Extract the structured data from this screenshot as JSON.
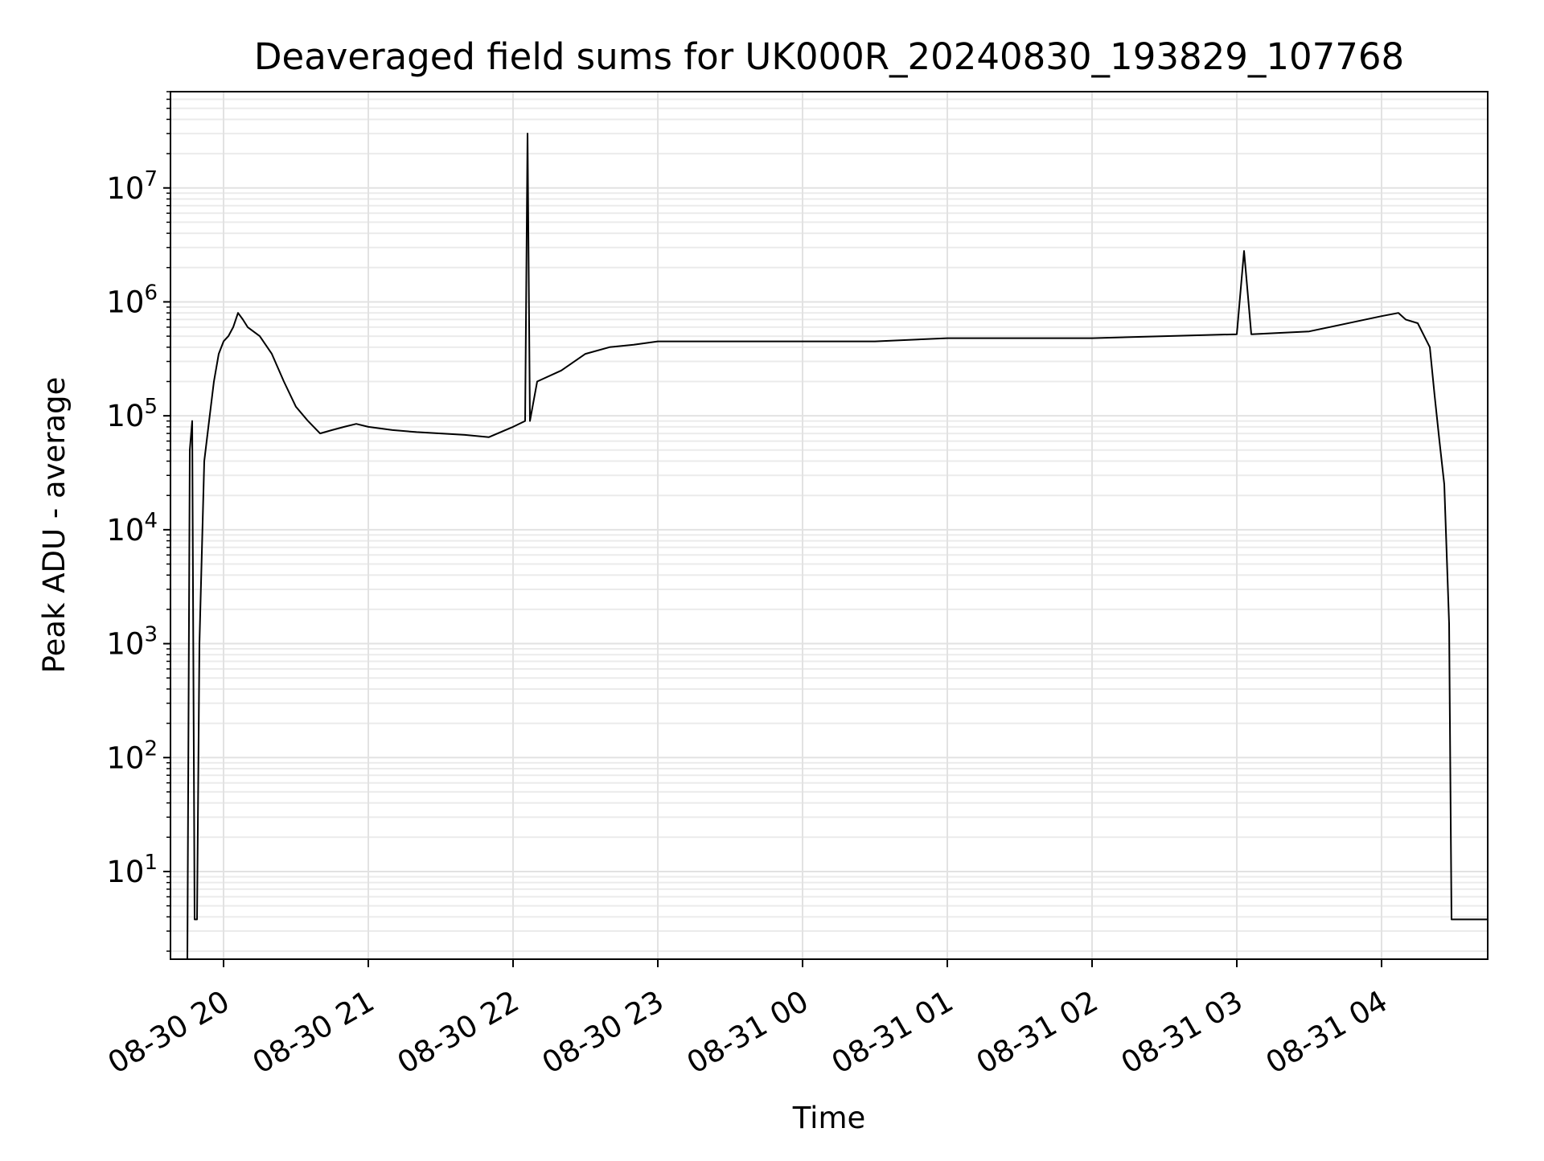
{
  "chart_data": {
    "type": "line",
    "title": "Deaveraged field sums for UK000R_20240830_193829_107768",
    "xlabel": "Time",
    "ylabel": "Peak ADU - average",
    "yscale": "log",
    "ylim": [
      1.7,
      70000000
    ],
    "xlim": [
      "08-30 19:38",
      "08-31 04:44"
    ],
    "grid": true,
    "x_ticks": [
      {
        "time": "08-30 20:00",
        "label": "08-30 20"
      },
      {
        "time": "08-30 21:00",
        "label": "08-30 21"
      },
      {
        "time": "08-30 22:00",
        "label": "08-30 22"
      },
      {
        "time": "08-30 23:00",
        "label": "08-30 23"
      },
      {
        "time": "08-31 00:00",
        "label": "08-31 00"
      },
      {
        "time": "08-31 01:00",
        "label": "08-31 01"
      },
      {
        "time": "08-31 02:00",
        "label": "08-31 02"
      },
      {
        "time": "08-31 03:00",
        "label": "08-31 03"
      },
      {
        "time": "08-31 04:00",
        "label": "08-31 04"
      }
    ],
    "y_ticks": [
      {
        "value": 10,
        "base": "10",
        "exp": "1"
      },
      {
        "value": 100,
        "base": "10",
        "exp": "2"
      },
      {
        "value": 1000,
        "base": "10",
        "exp": "3"
      },
      {
        "value": 10000,
        "base": "10",
        "exp": "4"
      },
      {
        "value": 100000,
        "base": "10",
        "exp": "5"
      },
      {
        "value": 1000000,
        "base": "10",
        "exp": "6"
      },
      {
        "value": 10000000,
        "base": "10",
        "exp": "7"
      }
    ],
    "series": [
      {
        "color": "#000000",
        "x": [
          "08-30 19:45",
          "08-30 19:46",
          "08-30 19:47",
          "08-30 19:48",
          "08-30 19:49",
          "08-30 19:50",
          "08-30 19:52",
          "08-30 19:54",
          "08-30 19:56",
          "08-30 19:58",
          "08-30 20:00",
          "08-30 20:02",
          "08-30 20:04",
          "08-30 20:06",
          "08-30 20:08",
          "08-30 20:10",
          "08-30 20:15",
          "08-30 20:20",
          "08-30 20:25",
          "08-30 20:30",
          "08-30 20:35",
          "08-30 20:40",
          "08-30 20:45",
          "08-30 20:50",
          "08-30 20:55",
          "08-30 21:00",
          "08-30 21:10",
          "08-30 21:20",
          "08-30 21:30",
          "08-30 21:40",
          "08-30 21:50",
          "08-30 22:00",
          "08-30 22:05",
          "08-30 22:06",
          "08-30 22:07",
          "08-30 22:10",
          "08-30 22:20",
          "08-30 22:30",
          "08-30 22:40",
          "08-30 22:50",
          "08-30 23:00",
          "08-30 23:30",
          "08-31 00:00",
          "08-31 00:30",
          "08-31 01:00",
          "08-31 01:30",
          "08-31 02:00",
          "08-31 02:30",
          "08-31 03:00",
          "08-31 03:03",
          "08-31 03:06",
          "08-31 03:30",
          "08-31 04:00",
          "08-31 04:07",
          "08-31 04:10",
          "08-31 04:15",
          "08-31 04:20",
          "08-31 04:22",
          "08-31 04:24",
          "08-31 04:26",
          "08-31 04:28",
          "08-31 04:29",
          "08-31 04:30",
          "08-31 04:35",
          "08-31 04:40",
          "08-31 04:44"
        ],
        "y": [
          1.7,
          50000,
          90000,
          3.8,
          3.8,
          1000,
          40000,
          90000,
          200000,
          350000,
          450000,
          500000,
          600000,
          800000,
          700000,
          600000,
          500000,
          350000,
          200000,
          120000,
          90000,
          70000,
          75000,
          80000,
          85000,
          80000,
          75000,
          72000,
          70000,
          68000,
          65000,
          80000,
          90000,
          30000000,
          90000,
          200000,
          250000,
          350000,
          400000,
          420000,
          450000,
          450000,
          450000,
          450000,
          480000,
          480000,
          480000,
          500000,
          520000,
          2800000,
          520000,
          550000,
          750000,
          800000,
          700000,
          650000,
          400000,
          150000,
          60000,
          25000,
          1500,
          3.8,
          3.8,
          3.8,
          3.8,
          3.8
        ]
      }
    ]
  }
}
